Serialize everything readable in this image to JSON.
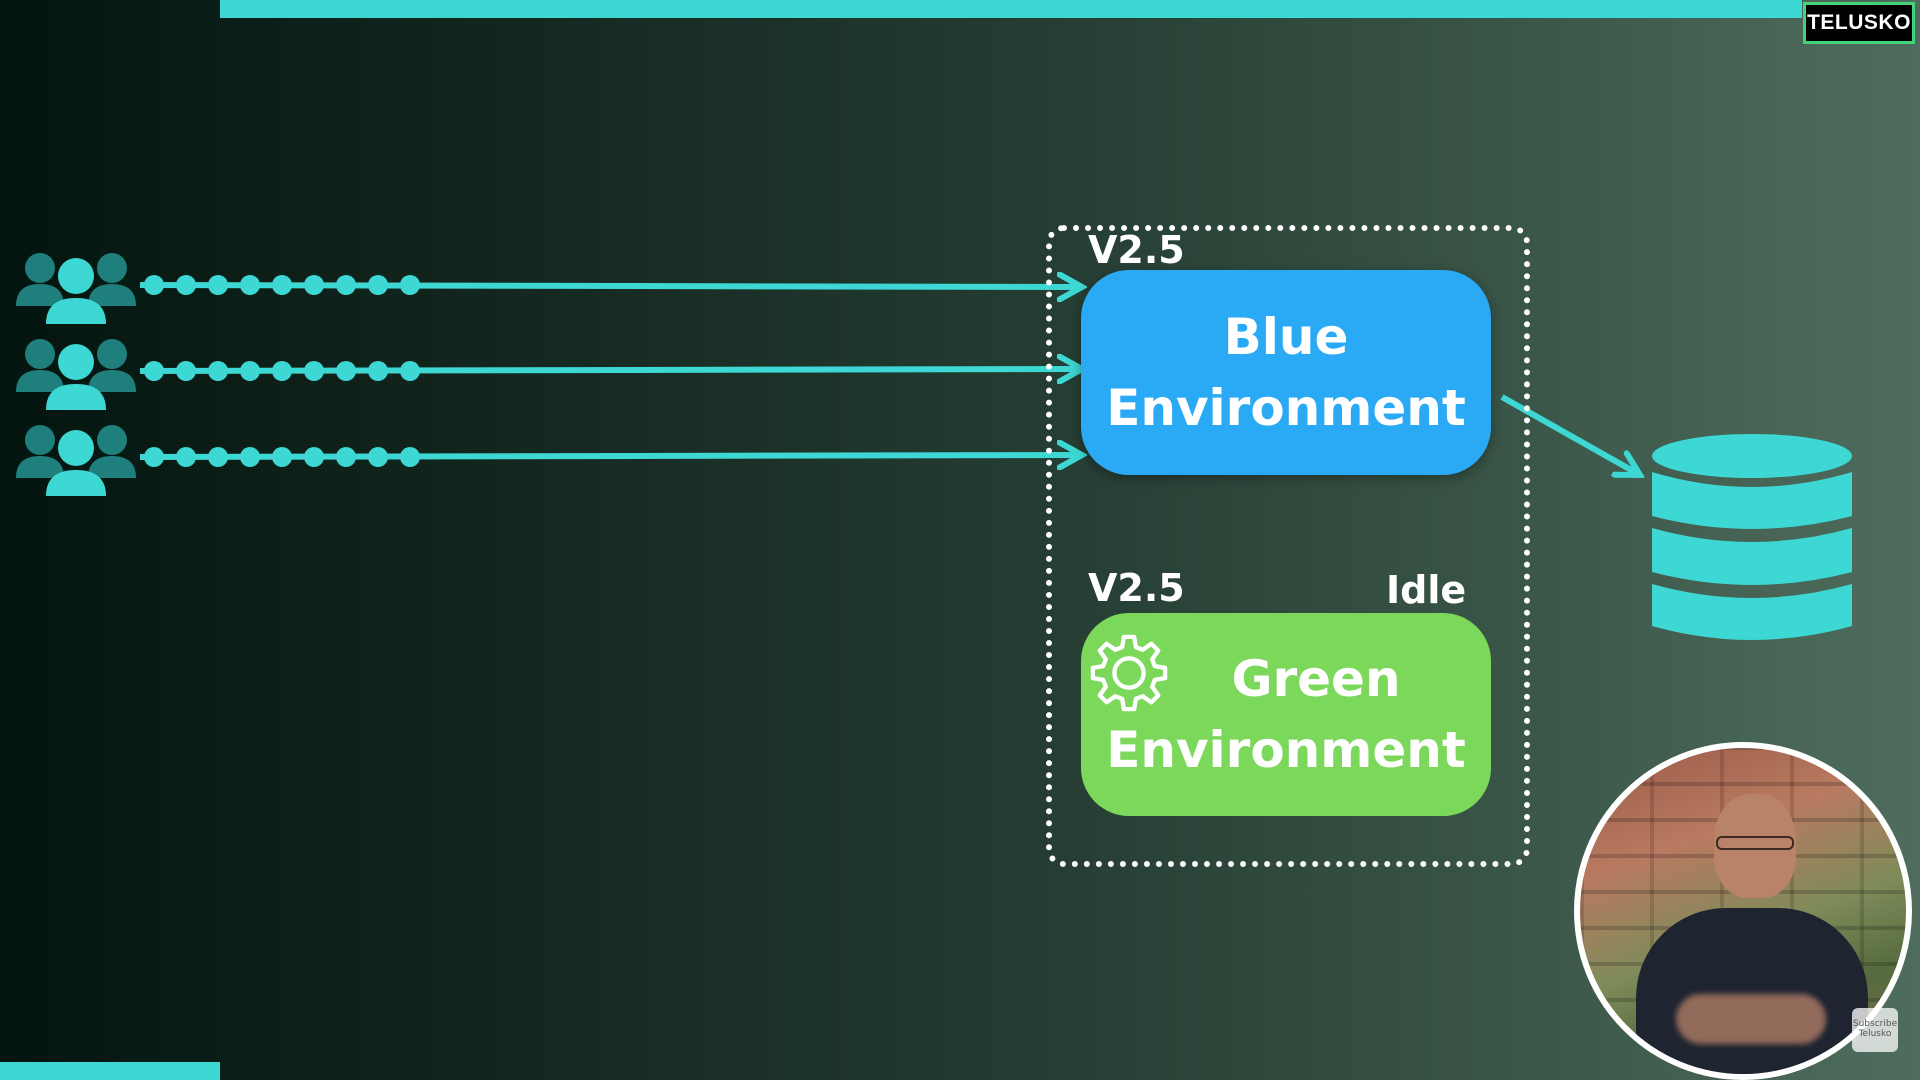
{
  "branding": {
    "logo_text": "TELUSKO",
    "subscribe_line1": "Subscribe",
    "subscribe_line2": "Telusko"
  },
  "diagram": {
    "users": [
      {
        "icon": "users-icon"
      },
      {
        "icon": "users-icon"
      },
      {
        "icon": "users-icon"
      }
    ],
    "blue_environment": {
      "version": "V2.5",
      "line1": "Blue",
      "line2": "Environment",
      "color": "#2aaaf5"
    },
    "green_environment": {
      "version": "V2.5",
      "status": "Idle",
      "line1": "Green",
      "line2": "Environment",
      "icon": "gear-icon",
      "color": "#7bd85a"
    },
    "database": {
      "icon": "database-icon"
    },
    "accent_color": "#3ed8d4"
  }
}
